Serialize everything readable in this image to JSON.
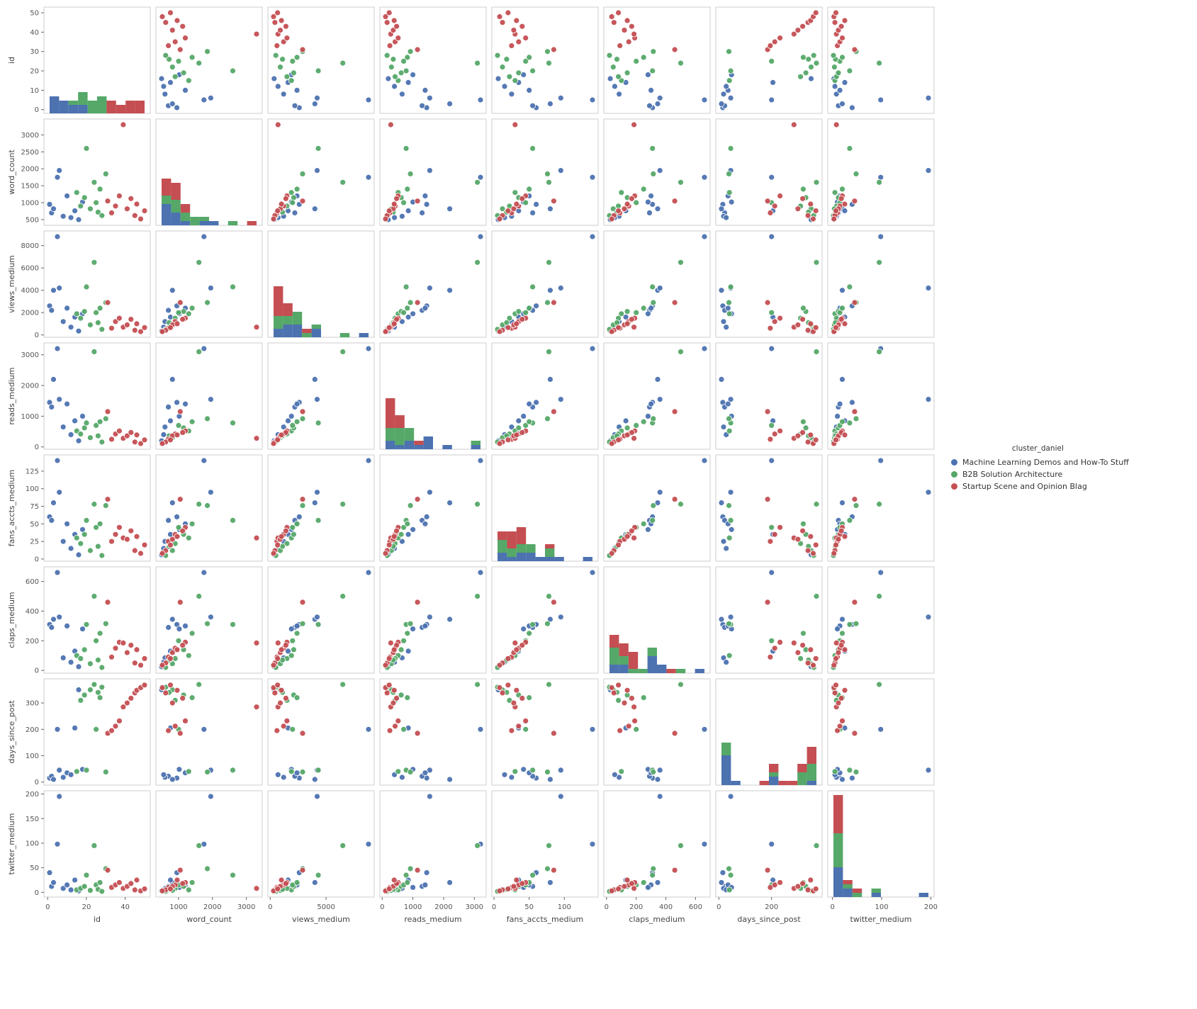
{
  "chart_data": {
    "type": "scatter_matrix",
    "title": "",
    "style": {
      "background": "#ffffff",
      "spine_color": "#cccccc",
      "tick_color": "#666666",
      "tick_label_color": "#555555",
      "axis_label_color": "#444444",
      "grid": false,
      "legend_position": "right",
      "diagonal": "stacked-histogram",
      "hist_bins": 10
    },
    "legend": {
      "title": "cluster_daniel",
      "entries": [
        {
          "label": "Machine Learning Demos and How-To Stuff",
          "color": "#4c72b0"
        },
        {
          "label": "B2B Solution Architecture",
          "color": "#55a868"
        },
        {
          "label": "Startup Scene and Opinion Blag",
          "color": "#c44e52"
        }
      ]
    },
    "variables": [
      {
        "key": "id",
        "label": "id",
        "y_ticks": [
          0,
          10,
          20,
          30,
          40,
          50
        ],
        "x_ticks": [
          0,
          20,
          40
        ]
      },
      {
        "key": "word_count",
        "label": "word_count",
        "y_ticks": [
          500,
          1000,
          1500,
          2000,
          2500,
          3000
        ],
        "x_ticks": [
          1000,
          2000,
          3000
        ]
      },
      {
        "key": "views_medium",
        "label": "views_medium",
        "y_ticks": [
          0,
          2000,
          4000,
          6000,
          8000
        ],
        "x_ticks": [
          0,
          5000
        ]
      },
      {
        "key": "reads_medium",
        "label": "reads_medium",
        "y_ticks": [
          0,
          1000,
          2000,
          3000
        ],
        "x_ticks": [
          0,
          1000,
          2000,
          3000
        ]
      },
      {
        "key": "fans_accts_medium",
        "label": "fans_accts_medium",
        "y_ticks": [
          0,
          25,
          50,
          75,
          100,
          125
        ],
        "x_ticks": [
          0,
          50,
          100
        ]
      },
      {
        "key": "claps_medium",
        "label": "claps_medium",
        "y_ticks": [
          0,
          200,
          400,
          600
        ],
        "x_ticks": [
          0,
          200,
          400,
          600
        ]
      },
      {
        "key": "days_since_post",
        "label": "days_since_post",
        "y_ticks": [
          0,
          100,
          200,
          300
        ],
        "x_ticks": [
          0,
          200
        ]
      },
      {
        "key": "twitter_medium",
        "label": "twitter_medium",
        "y_ticks": [
          0,
          50,
          100,
          150,
          200
        ],
        "x_ticks": [
          0,
          100,
          200
        ]
      }
    ],
    "points": [
      {
        "cluster": 0,
        "id": 1,
        "word_count": 950,
        "views_medium": 2600,
        "reads_medium": 1450,
        "fans_accts_medium": 60,
        "claps_medium": 310,
        "days_since_post": 15,
        "twitter_medium": 40
      },
      {
        "cluster": 0,
        "id": 2,
        "word_count": 700,
        "views_medium": 2200,
        "reads_medium": 1300,
        "fans_accts_medium": 55,
        "claps_medium": 290,
        "days_since_post": 22,
        "twitter_medium": 12
      },
      {
        "cluster": 0,
        "id": 3,
        "word_count": 820,
        "views_medium": 4000,
        "reads_medium": 2200,
        "fans_accts_medium": 80,
        "claps_medium": 345,
        "days_since_post": 10,
        "twitter_medium": 20
      },
      {
        "cluster": 0,
        "id": 5,
        "word_count": 1750,
        "views_medium": 8800,
        "reads_medium": 3200,
        "fans_accts_medium": 140,
        "claps_medium": 660,
        "days_since_post": 200,
        "twitter_medium": 98
      },
      {
        "cluster": 0,
        "id": 6,
        "word_count": 1950,
        "views_medium": 4200,
        "reads_medium": 1550,
        "fans_accts_medium": 95,
        "claps_medium": 360,
        "days_since_post": 45,
        "twitter_medium": 195
      },
      {
        "cluster": 0,
        "id": 8,
        "word_count": 600,
        "views_medium": 1200,
        "reads_medium": 650,
        "fans_accts_medium": 25,
        "claps_medium": 85,
        "days_since_post": 18,
        "twitter_medium": 8
      },
      {
        "cluster": 0,
        "id": 10,
        "word_count": 1200,
        "views_medium": 2400,
        "reads_medium": 1400,
        "fans_accts_medium": 50,
        "claps_medium": 300,
        "days_since_post": 35,
        "twitter_medium": 15
      },
      {
        "cluster": 0,
        "id": 12,
        "word_count": 560,
        "views_medium": 700,
        "reads_medium": 400,
        "fans_accts_medium": 15,
        "claps_medium": 55,
        "days_since_post": 28,
        "twitter_medium": 5
      },
      {
        "cluster": 0,
        "id": 14,
        "word_count": 760,
        "views_medium": 1600,
        "reads_medium": 850,
        "fans_accts_medium": 35,
        "claps_medium": 130,
        "days_since_post": 205,
        "twitter_medium": 25
      },
      {
        "cluster": 0,
        "id": 16,
        "word_count": 500,
        "views_medium": 350,
        "reads_medium": 200,
        "fans_accts_medium": 6,
        "claps_medium": 25,
        "days_since_post": 350,
        "twitter_medium": 3
      },
      {
        "cluster": 0,
        "id": 18,
        "word_count": 1020,
        "views_medium": 1900,
        "reads_medium": 1000,
        "fans_accts_medium": 42,
        "claps_medium": 280,
        "days_since_post": 48,
        "twitter_medium": 10
      },
      {
        "cluster": 1,
        "id": 15,
        "word_count": 1300,
        "views_medium": 1900,
        "reads_medium": 520,
        "fans_accts_medium": 30,
        "claps_medium": 100,
        "days_since_post": 40,
        "twitter_medium": 5
      },
      {
        "cluster": 1,
        "id": 17,
        "word_count": 900,
        "views_medium": 1500,
        "reads_medium": 420,
        "fans_accts_medium": 22,
        "claps_medium": 80,
        "days_since_post": 310,
        "twitter_medium": 8
      },
      {
        "cluster": 1,
        "id": 19,
        "word_count": 1150,
        "views_medium": 2100,
        "reads_medium": 620,
        "fans_accts_medium": 35,
        "claps_medium": 140,
        "days_since_post": 330,
        "twitter_medium": 12
      },
      {
        "cluster": 1,
        "id": 20,
        "word_count": 2600,
        "views_medium": 4300,
        "reads_medium": 780,
        "fans_accts_medium": 55,
        "claps_medium": 310,
        "days_since_post": 45,
        "twitter_medium": 35
      },
      {
        "cluster": 1,
        "id": 22,
        "word_count": 820,
        "views_medium": 900,
        "reads_medium": 300,
        "fans_accts_medium": 12,
        "claps_medium": 45,
        "days_since_post": 350,
        "twitter_medium": 4
      },
      {
        "cluster": 1,
        "id": 24,
        "word_count": 1600,
        "views_medium": 6500,
        "reads_medium": 3100,
        "fans_accts_medium": 78,
        "claps_medium": 500,
        "days_since_post": 370,
        "twitter_medium": 95
      },
      {
        "cluster": 1,
        "id": 25,
        "word_count": 1000,
        "views_medium": 2000,
        "reads_medium": 700,
        "fans_accts_medium": 45,
        "claps_medium": 200,
        "days_since_post": 200,
        "twitter_medium": 15
      },
      {
        "cluster": 1,
        "id": 26,
        "word_count": 720,
        "views_medium": 1100,
        "reads_medium": 360,
        "fans_accts_medium": 18,
        "claps_medium": 70,
        "days_since_post": 340,
        "twitter_medium": 6
      },
      {
        "cluster": 1,
        "id": 27,
        "word_count": 1400,
        "views_medium": 2400,
        "reads_medium": 820,
        "fans_accts_medium": 50,
        "claps_medium": 250,
        "days_since_post": 320,
        "twitter_medium": 20
      },
      {
        "cluster": 1,
        "id": 28,
        "word_count": 620,
        "views_medium": 500,
        "reads_medium": 160,
        "fans_accts_medium": 5,
        "claps_medium": 20,
        "days_since_post": 360,
        "twitter_medium": 2
      },
      {
        "cluster": 1,
        "id": 30,
        "word_count": 1850,
        "views_medium": 2900,
        "reads_medium": 920,
        "fans_accts_medium": 76,
        "claps_medium": 315,
        "days_since_post": 38,
        "twitter_medium": 48
      },
      {
        "cluster": 2,
        "id": 31,
        "word_count": 1050,
        "views_medium": 2900,
        "reads_medium": 1150,
        "fans_accts_medium": 85,
        "claps_medium": 460,
        "days_since_post": 185,
        "twitter_medium": 45
      },
      {
        "cluster": 2,
        "id": 33,
        "word_count": 700,
        "views_medium": 600,
        "reads_medium": 250,
        "fans_accts_medium": 25,
        "claps_medium": 90,
        "days_since_post": 195,
        "twitter_medium": 10
      },
      {
        "cluster": 2,
        "id": 35,
        "word_count": 900,
        "views_medium": 1200,
        "reads_medium": 420,
        "fans_accts_medium": 35,
        "claps_medium": 150,
        "days_since_post": 212,
        "twitter_medium": 15
      },
      {
        "cluster": 2,
        "id": 37,
        "word_count": 1200,
        "views_medium": 1500,
        "reads_medium": 520,
        "fans_accts_medium": 45,
        "claps_medium": 190,
        "days_since_post": 232,
        "twitter_medium": 20
      },
      {
        "cluster": 2,
        "id": 39,
        "word_count": 3300,
        "views_medium": 700,
        "reads_medium": 280,
        "fans_accts_medium": 30,
        "claps_medium": 185,
        "days_since_post": 285,
        "twitter_medium": 8
      },
      {
        "cluster": 2,
        "id": 41,
        "word_count": 820,
        "views_medium": 900,
        "reads_medium": 360,
        "fans_accts_medium": 28,
        "claps_medium": 120,
        "days_since_post": 300,
        "twitter_medium": 12
      },
      {
        "cluster": 2,
        "id": 43,
        "word_count": 1120,
        "views_medium": 1400,
        "reads_medium": 470,
        "fans_accts_medium": 40,
        "claps_medium": 170,
        "days_since_post": 318,
        "twitter_medium": 18
      },
      {
        "cluster": 2,
        "id": 45,
        "word_count": 620,
        "views_medium": 420,
        "reads_medium": 160,
        "fans_accts_medium": 12,
        "claps_medium": 50,
        "days_since_post": 338,
        "twitter_medium": 5
      },
      {
        "cluster": 2,
        "id": 46,
        "word_count": 960,
        "views_medium": 1000,
        "reads_medium": 390,
        "fans_accts_medium": 32,
        "claps_medium": 140,
        "days_since_post": 348,
        "twitter_medium": 25
      },
      {
        "cluster": 2,
        "id": 48,
        "word_count": 520,
        "views_medium": 300,
        "reads_medium": 110,
        "fans_accts_medium": 8,
        "claps_medium": 35,
        "days_since_post": 358,
        "twitter_medium": 3
      },
      {
        "cluster": 2,
        "id": 50,
        "word_count": 760,
        "views_medium": 660,
        "reads_medium": 230,
        "fans_accts_medium": 20,
        "claps_medium": 80,
        "days_since_post": 368,
        "twitter_medium": 7
      }
    ]
  }
}
